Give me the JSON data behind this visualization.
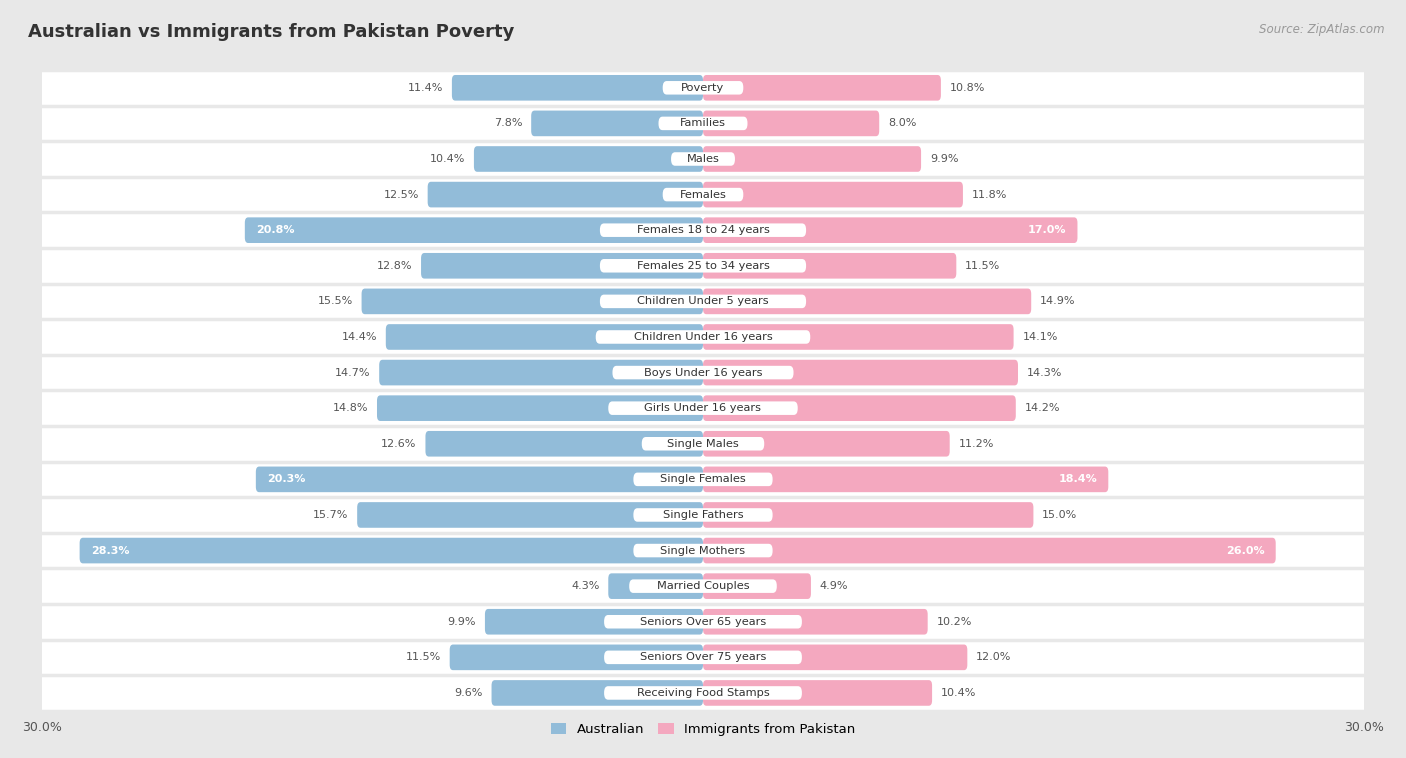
{
  "title": "Australian vs Immigrants from Pakistan Poverty",
  "source": "Source: ZipAtlas.com",
  "categories": [
    "Poverty",
    "Families",
    "Males",
    "Females",
    "Females 18 to 24 years",
    "Females 25 to 34 years",
    "Children Under 5 years",
    "Children Under 16 years",
    "Boys Under 16 years",
    "Girls Under 16 years",
    "Single Males",
    "Single Females",
    "Single Fathers",
    "Single Mothers",
    "Married Couples",
    "Seniors Over 65 years",
    "Seniors Over 75 years",
    "Receiving Food Stamps"
  ],
  "australian": [
    11.4,
    7.8,
    10.4,
    12.5,
    20.8,
    12.8,
    15.5,
    14.4,
    14.7,
    14.8,
    12.6,
    20.3,
    15.7,
    28.3,
    4.3,
    9.9,
    11.5,
    9.6
  ],
  "pakistan": [
    10.8,
    8.0,
    9.9,
    11.8,
    17.0,
    11.5,
    14.9,
    14.1,
    14.3,
    14.2,
    11.2,
    18.4,
    15.0,
    26.0,
    4.9,
    10.2,
    12.0,
    10.4
  ],
  "australian_color": "#92bcd9",
  "pakistan_color": "#f4a8bf",
  "background_color": "#e8e8e8",
  "row_bg_color": "#ffffff",
  "xlim": 30.0,
  "legend_australian": "Australian",
  "legend_pakistan": "Immigrants from Pakistan",
  "inside_label_threshold_aus": 18.0,
  "inside_label_threshold_pak": 17.0
}
